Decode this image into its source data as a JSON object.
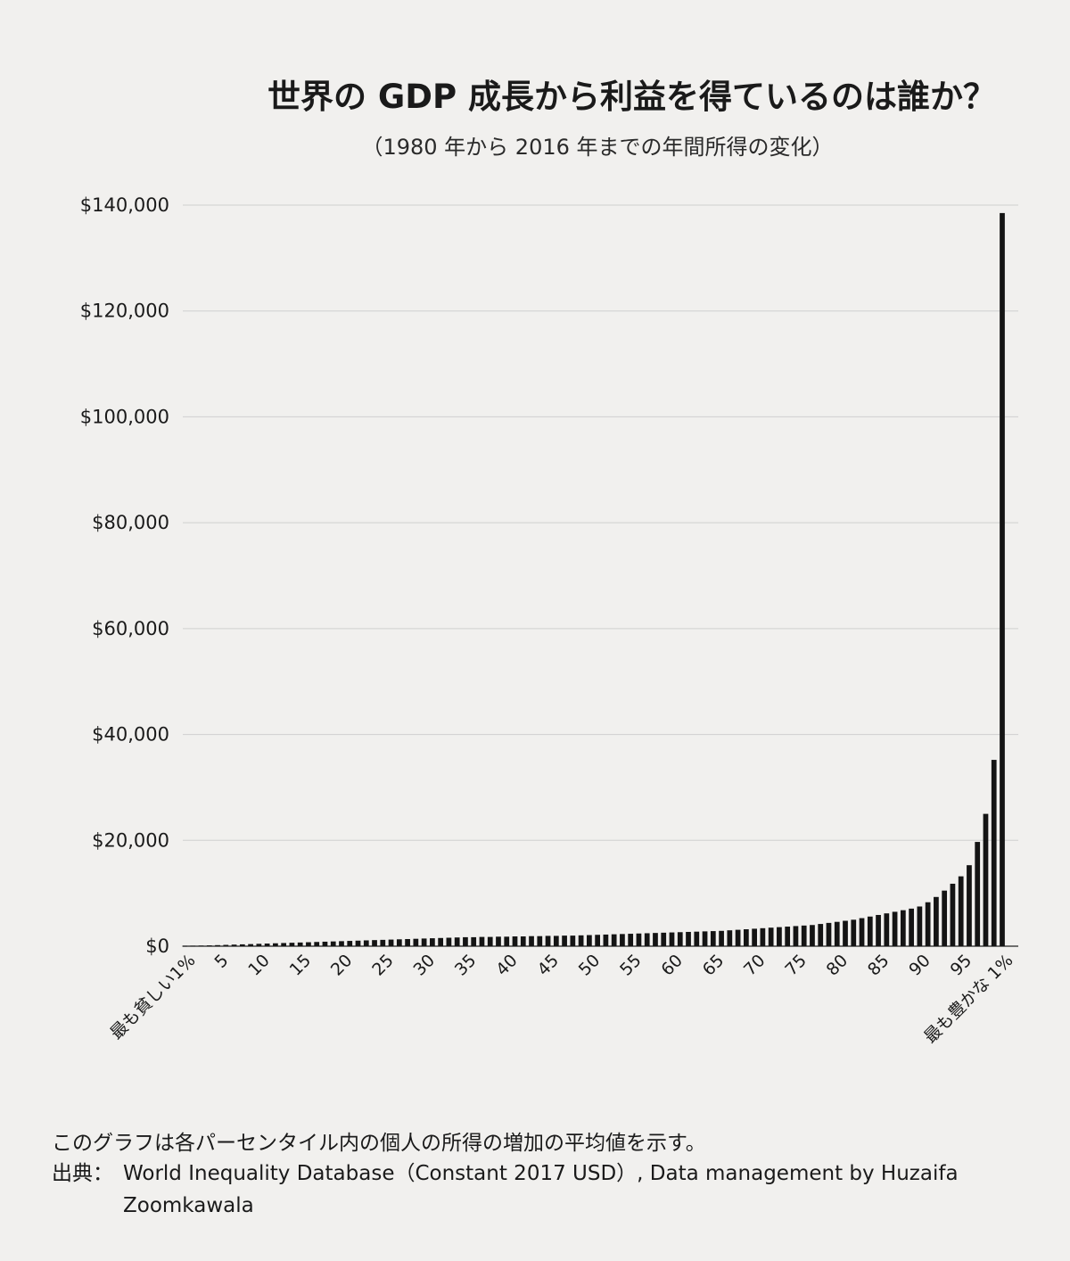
{
  "title": "世界の GDP 成長から利益を得ているのは誰か？",
  "subtitle": "（1980 年から 2016 年までの年間所得の変化）",
  "footnote": "このグラフは各パーセンタイル内の個人の所得の増加の平均値を示す。",
  "source_label": "出典：",
  "source_text": "World Inequality Database（Constant 2017 USD）, Data management by Huzaifa Zoomkawala",
  "chart_data": {
    "type": "bar",
    "title": "世界の GDP 成長から利益を得ているのは誰か？",
    "subtitle": "（1980 年から 2016 年までの年間所得の変化）",
    "xlabel": "",
    "ylabel": "",
    "ylim": [
      0,
      140000
    ],
    "yticks": [
      {
        "value": 0,
        "label": "$0"
      },
      {
        "value": 20000,
        "label": "$20,000"
      },
      {
        "value": 40000,
        "label": "$40,000"
      },
      {
        "value": 60000,
        "label": "$60,000"
      },
      {
        "value": 80000,
        "label": "$80,000"
      },
      {
        "value": 100000,
        "label": "$100,000"
      },
      {
        "value": 120000,
        "label": "$120,000"
      },
      {
        "value": 140000,
        "label": "$140,000"
      }
    ],
    "xtick_labels": [
      {
        "percentile": 1,
        "label": "最も貧しい1%"
      },
      {
        "percentile": 5,
        "label": "5"
      },
      {
        "percentile": 10,
        "label": "10"
      },
      {
        "percentile": 15,
        "label": "15"
      },
      {
        "percentile": 20,
        "label": "20"
      },
      {
        "percentile": 25,
        "label": "25"
      },
      {
        "percentile": 30,
        "label": "30"
      },
      {
        "percentile": 35,
        "label": "35"
      },
      {
        "percentile": 40,
        "label": "40"
      },
      {
        "percentile": 45,
        "label": "45"
      },
      {
        "percentile": 50,
        "label": "50"
      },
      {
        "percentile": 55,
        "label": "55"
      },
      {
        "percentile": 60,
        "label": "60"
      },
      {
        "percentile": 65,
        "label": "65"
      },
      {
        "percentile": 70,
        "label": "70"
      },
      {
        "percentile": 75,
        "label": "75"
      },
      {
        "percentile": 80,
        "label": "80"
      },
      {
        "percentile": 85,
        "label": "85"
      },
      {
        "percentile": 90,
        "label": "90"
      },
      {
        "percentile": 95,
        "label": "95"
      },
      {
        "percentile": 100,
        "label": "最も豊かな 1%"
      }
    ],
    "grid": true,
    "bar_color": "#141414",
    "percentiles": [
      1,
      2,
      3,
      4,
      5,
      6,
      7,
      8,
      9,
      10,
      11,
      12,
      13,
      14,
      15,
      16,
      17,
      18,
      19,
      20,
      21,
      22,
      23,
      24,
      25,
      26,
      27,
      28,
      29,
      30,
      31,
      32,
      33,
      34,
      35,
      36,
      37,
      38,
      39,
      40,
      41,
      42,
      43,
      44,
      45,
      46,
      47,
      48,
      49,
      50,
      51,
      52,
      53,
      54,
      55,
      56,
      57,
      58,
      59,
      60,
      61,
      62,
      63,
      64,
      65,
      66,
      67,
      68,
      69,
      70,
      71,
      72,
      73,
      74,
      75,
      76,
      77,
      78,
      79,
      80,
      81,
      82,
      83,
      84,
      85,
      86,
      87,
      88,
      89,
      90,
      91,
      92,
      93,
      94,
      95,
      96,
      97,
      98,
      99,
      100
    ],
    "values": [
      50,
      80,
      110,
      150,
      200,
      250,
      300,
      350,
      400,
      450,
      500,
      550,
      600,
      650,
      700,
      750,
      800,
      850,
      900,
      950,
      1000,
      1050,
      1100,
      1150,
      1200,
      1250,
      1300,
      1350,
      1400,
      1450,
      1500,
      1550,
      1600,
      1650,
      1700,
      1700,
      1750,
      1750,
      1800,
      1800,
      1850,
      1850,
      1900,
      1900,
      1950,
      1950,
      2000,
      2000,
      2050,
      2100,
      2150,
      2200,
      2250,
      2300,
      2350,
      2400,
      2450,
      2500,
      2550,
      2600,
      2650,
      2700,
      2750,
      2800,
      2850,
      2900,
      3000,
      3100,
      3200,
      3300,
      3400,
      3500,
      3600,
      3700,
      3800,
      3900,
      4000,
      4200,
      4400,
      4600,
      4800,
      5000,
      5300,
      5600,
      5900,
      6200,
      6500,
      6800,
      7100,
      7500,
      8300,
      9300,
      10500,
      11800,
      13200,
      15300,
      19700,
      25000,
      35200,
      138500
    ]
  }
}
